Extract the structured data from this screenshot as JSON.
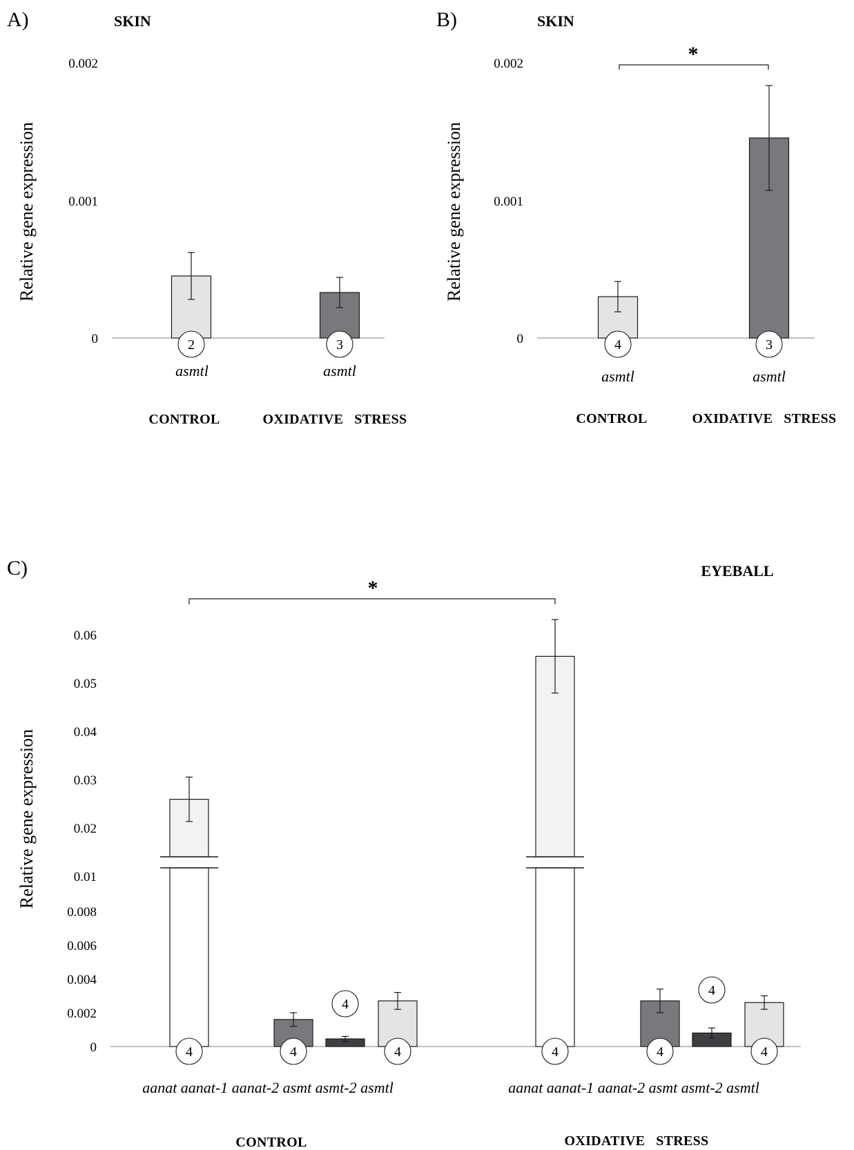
{
  "colors": {
    "light": "#e4e4e6",
    "medium": "#78797d",
    "dark": "#3f3f43",
    "lightest": "#f2f2f4",
    "axis": "#9a9a9a",
    "stroke": "#1a1a1a"
  },
  "chart_data": [
    {
      "panel": "A)",
      "type": "bar",
      "title": "SKIN",
      "ylabel": "Relative gene expression",
      "ylim": [
        0,
        0.002
      ],
      "yticks": [
        "0",
        "0.001",
        "0.002"
      ],
      "categories": [
        "asmtl",
        "asmtl"
      ],
      "groups": [
        "CONTROL",
        "OXIDATIVE   STRESS"
      ],
      "values": [
        0.00045,
        0.00033
      ],
      "errors": [
        0.00017,
        0.00011
      ],
      "n": [
        "2",
        "3"
      ],
      "bar_colors": [
        "light",
        "medium"
      ],
      "significance": null
    },
    {
      "panel": "B)",
      "type": "bar",
      "title": "SKIN",
      "ylabel": "Relative gene expression",
      "ylim": [
        0,
        0.002
      ],
      "yticks": [
        "0",
        "0.001",
        "0.002"
      ],
      "categories": [
        "asmtl",
        "asmtl"
      ],
      "groups": [
        "CONTROL",
        "OXIDATIVE   STRESS"
      ],
      "values": [
        0.0003,
        0.00145
      ],
      "errors": [
        0.00011,
        0.00038
      ],
      "n": [
        "4",
        "3"
      ],
      "bar_colors": [
        "light",
        "medium"
      ],
      "significance": "*"
    },
    {
      "panel": "C)",
      "type": "bar",
      "title": "EYEBALL",
      "ylabel": "Relative gene expression",
      "yticks_lower": [
        "0",
        "0.002",
        "0.004",
        "0.006",
        "0.008",
        "0.01"
      ],
      "yticks_upper": [
        "0.02",
        "0.03",
        "0.04",
        "0.05",
        "0.06"
      ],
      "axis_break": [
        0.01,
        0.015
      ],
      "category_labels": [
        "aanat aanat-1 aanat-2 asmt asmt-2 asmtl",
        "aanat aanat-1 aanat-2 asmt asmt-2 asmtl"
      ],
      "groups": [
        "CONTROL",
        "OXIDATIVE   STRESS"
      ],
      "series": [
        {
          "values": [
            0.0262,
            0.0558
          ],
          "errors": [
            0.0046,
            0.0076
          ],
          "n": [
            "4",
            "4"
          ],
          "color": "lightest"
        },
        {
          "values": [
            0.0016,
            0.0027
          ],
          "errors": [
            0.0004,
            0.0007
          ],
          "n": [
            "4",
            "4"
          ],
          "color": "medium"
        },
        {
          "values": [
            0.00045,
            0.0008
          ],
          "errors": [
            0.00015,
            0.0003
          ],
          "n": [
            "4",
            "4"
          ],
          "color": "dark"
        },
        {
          "values": [
            0.0027,
            0.0026
          ],
          "errors": [
            0.0005,
            0.0004
          ],
          "n": [
            "4",
            "4"
          ],
          "color": "light"
        }
      ],
      "significance": "*"
    }
  ]
}
